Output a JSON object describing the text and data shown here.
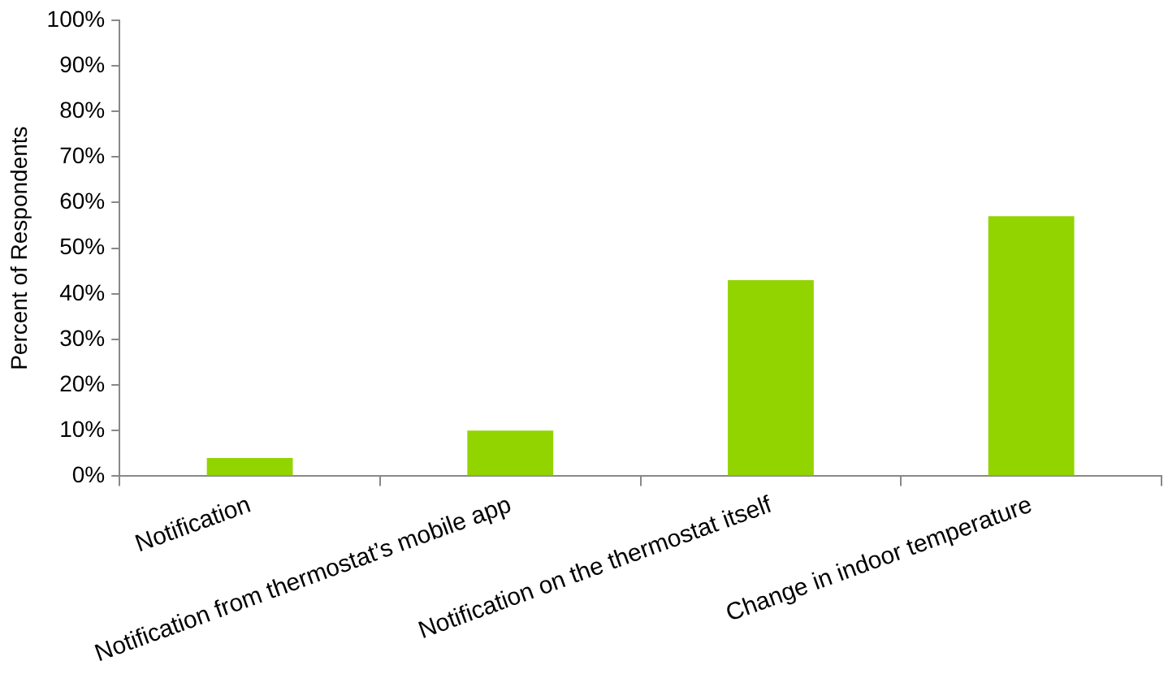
{
  "chart_data": {
    "type": "bar",
    "ylabel": "Percent of Respondents",
    "categories": [
      "Notification",
      "Notification from thermostat’s mobile app",
      "Notification on the thermostat itself",
      "Change in indoor temperature"
    ],
    "values": [
      4,
      10,
      43,
      57
    ],
    "color": "#92d400",
    "ylim": [
      0,
      100
    ],
    "yticks": [
      {
        "value": 0,
        "label": "0%"
      },
      {
        "value": 10,
        "label": "10%"
      },
      {
        "value": 20,
        "label": "20%"
      },
      {
        "value": 30,
        "label": "30%"
      },
      {
        "value": 40,
        "label": "40%"
      },
      {
        "value": 50,
        "label": "50%"
      },
      {
        "value": 60,
        "label": "60%"
      },
      {
        "value": 70,
        "label": "70%"
      },
      {
        "value": 80,
        "label": "80%"
      },
      {
        "value": 90,
        "label": "90%"
      },
      {
        "value": 100,
        "label": "100%"
      }
    ]
  }
}
